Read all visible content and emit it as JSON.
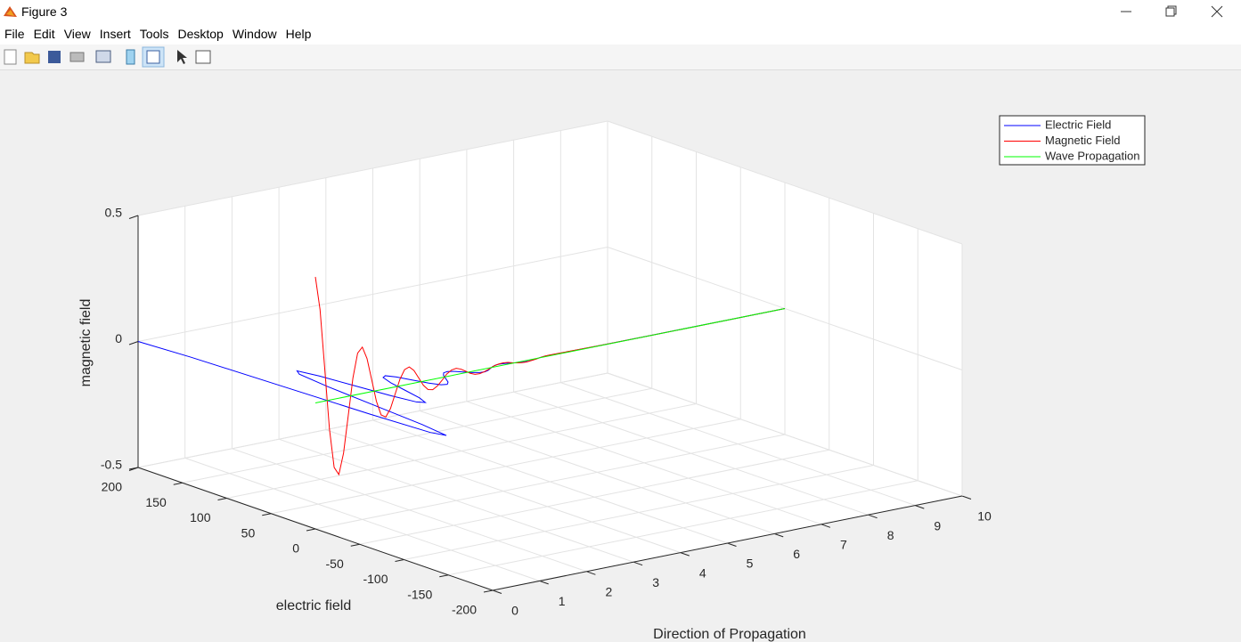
{
  "window": {
    "title": "Figure 3",
    "menu": [
      "File",
      "Edit",
      "View",
      "Insert",
      "Tools",
      "Desktop",
      "Window",
      "Help"
    ]
  },
  "chart_data": {
    "type": "line3d",
    "xlabel": "Direction of Propagation",
    "ylabel": "electric field",
    "zlabel": "magnetic field",
    "xlim": [
      0,
      10
    ],
    "ylim": [
      -200,
      200
    ],
    "zlim": [
      -0.5,
      0.5
    ],
    "xticks": [
      0,
      1,
      2,
      3,
      4,
      5,
      6,
      7,
      8,
      9,
      10
    ],
    "yticks": [
      -200,
      -150,
      -100,
      -50,
      0,
      50,
      100,
      150,
      200
    ],
    "zticks": [
      -0.5,
      0,
      0.5
    ],
    "grid": true,
    "legend": "northeast",
    "series": [
      {
        "name": "Electric Field",
        "color": "#0000ff",
        "x": [
          0,
          0.1,
          0.2,
          0.3,
          0.4,
          0.5,
          0.6,
          0.7,
          0.8,
          0.9,
          1,
          1.1,
          1.2,
          1.3,
          1.4,
          1.5,
          1.6,
          1.7,
          1.8,
          1.9,
          2,
          2.1,
          2.2,
          2.3,
          2.4,
          2.5,
          2.6,
          2.7,
          2.8,
          2.9,
          3,
          3.1,
          3.2,
          3.3,
          3.4,
          3.5,
          3.6,
          3.7,
          3.8,
          3.9,
          4,
          4.1,
          4.2,
          4.3,
          4.4,
          4.5,
          4.6,
          4.7,
          4.8,
          4.9,
          5,
          6,
          7,
          8,
          9,
          10
        ],
        "y": [
          200,
          146.4,
          50.6,
          -45.8,
          -108.5,
          -121.3,
          -88.8,
          -30.7,
          27.8,
          65.8,
          73.6,
          53.9,
          18.6,
          -16.8,
          -39.9,
          -44.6,
          -32.7,
          -11.3,
          10.2,
          24.2,
          27.1,
          19.8,
          6.8,
          -6.2,
          -14.7,
          -16.4,
          -12.0,
          -4.2,
          3.8,
          8.9,
          10.0,
          7.3,
          2.5,
          -2.3,
          -5.4,
          -6.0,
          -4.4,
          -1.5,
          1.4,
          3.3,
          3.7,
          2.7,
          0.9,
          -0.8,
          -2.0,
          -2.2,
          -1.6,
          -0.6,
          0.5,
          1.2,
          1.3,
          0.5,
          0.2,
          0.1,
          0,
          0
        ],
        "z": [
          0,
          0,
          0,
          0,
          0,
          0,
          0,
          0,
          0,
          0,
          0,
          0,
          0,
          0,
          0,
          0,
          0,
          0,
          0,
          0,
          0,
          0,
          0,
          0,
          0,
          0,
          0,
          0,
          0,
          0,
          0,
          0,
          0,
          0,
          0,
          0,
          0,
          0,
          0,
          0,
          0,
          0,
          0,
          0,
          0,
          0,
          0,
          0,
          0,
          0,
          0,
          0,
          0,
          0,
          0,
          0
        ]
      },
      {
        "name": "Magnetic Field",
        "color": "#ff0000",
        "x": [
          0,
          0.1,
          0.2,
          0.3,
          0.4,
          0.5,
          0.6,
          0.7,
          0.8,
          0.9,
          1,
          1.1,
          1.2,
          1.3,
          1.4,
          1.5,
          1.6,
          1.7,
          1.8,
          1.9,
          2,
          2.1,
          2.2,
          2.3,
          2.4,
          2.5,
          2.6,
          2.7,
          2.8,
          2.9,
          3,
          3.1,
          3.2,
          3.3,
          3.4,
          3.5,
          3.6,
          3.7,
          3.8,
          3.9,
          4,
          4.1,
          4.2,
          4.3,
          4.4,
          4.5,
          4.6,
          4.7,
          4.8,
          4.9,
          5,
          6,
          7,
          8,
          9,
          10
        ],
        "y": [
          0,
          0,
          0,
          0,
          0,
          0,
          0,
          0,
          0,
          0,
          0,
          0,
          0,
          0,
          0,
          0,
          0,
          0,
          0,
          0,
          0,
          0,
          0,
          0,
          0,
          0,
          0,
          0,
          0,
          0,
          0,
          0,
          0,
          0,
          0,
          0,
          0,
          0,
          0,
          0,
          0,
          0,
          0,
          0,
          0,
          0,
          0,
          0,
          0,
          0,
          0,
          0,
          0,
          0,
          0,
          0
        ],
        "z": [
          0.5,
          0.366,
          0.127,
          -0.115,
          -0.271,
          -0.303,
          -0.222,
          -0.077,
          0.069,
          0.164,
          0.184,
          0.135,
          0.047,
          -0.042,
          -0.1,
          -0.112,
          -0.082,
          -0.028,
          0.026,
          0.061,
          0.068,
          0.05,
          0.017,
          -0.016,
          -0.037,
          -0.041,
          -0.03,
          -0.011,
          0.01,
          0.022,
          0.025,
          0.018,
          0.006,
          -0.006,
          -0.014,
          -0.015,
          -0.011,
          -0.004,
          0.004,
          0.008,
          0.009,
          0.007,
          0.002,
          -0.002,
          -0.005,
          -0.006,
          -0.004,
          -0.002,
          0.001,
          0.003,
          0.003,
          0.001,
          0,
          0,
          0,
          0
        ]
      },
      {
        "name": "Wave Propagation",
        "color": "#00ff00",
        "x": [
          0,
          10
        ],
        "y": [
          0,
          0
        ],
        "z": [
          0,
          0
        ]
      }
    ]
  }
}
